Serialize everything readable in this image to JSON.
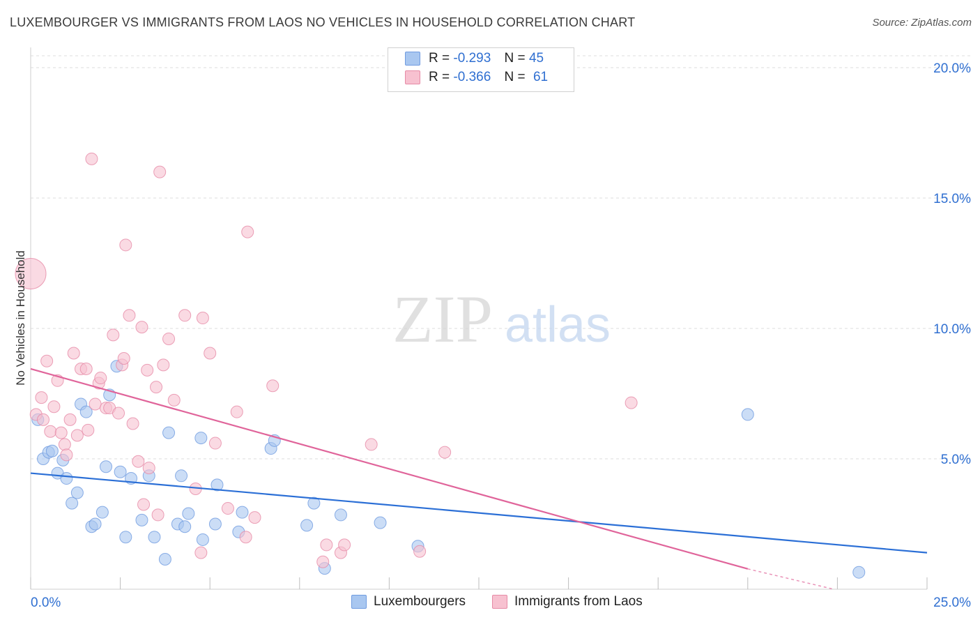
{
  "title": "LUXEMBOURGER VS IMMIGRANTS FROM LAOS NO VEHICLES IN HOUSEHOLD CORRELATION CHART",
  "source": "Source: ZipAtlas.com",
  "watermark": {
    "zip": "ZIP",
    "atlas": "atlas"
  },
  "legend": {
    "rows": [
      {
        "r_label": "R =",
        "r_value": "-0.293",
        "n_label": "N =",
        "n_value": "45",
        "color": "#a9c7f0",
        "border": "#6f9be0"
      },
      {
        "r_label": "R =",
        "r_value": "-0.366",
        "n_label": "N =",
        "n_value": "61",
        "color": "#f7c1d0",
        "border": "#e68aa6"
      }
    ]
  },
  "chart_data": {
    "type": "scatter",
    "title": "LUXEMBOURGER VS IMMIGRANTS FROM LAOS NO VEHICLES IN HOUSEHOLD CORRELATION CHART",
    "xlabel": "",
    "ylabel": "No Vehicles in Household",
    "xlim": [
      0,
      25
    ],
    "ylim": [
      0,
      20
    ],
    "x_tick_labels": [
      "0.0%",
      "25.0%"
    ],
    "y_ticks": [
      5,
      10,
      15,
      20
    ],
    "y_tick_labels": [
      "5.0%",
      "10.0%",
      "15.0%",
      "20.0%"
    ],
    "grid": true,
    "legend_position": "top-center",
    "series": [
      {
        "name": "Luxembourgers",
        "color": "#6f9be0",
        "fill": "#a9c7f0",
        "trend": {
          "x": [
            0,
            25
          ],
          "y": [
            4.45,
            1.4
          ]
        },
        "points": [
          [
            0.2,
            6.5
          ],
          [
            0.35,
            5.0
          ],
          [
            0.5,
            5.25
          ],
          [
            0.6,
            5.3
          ],
          [
            0.75,
            4.45
          ],
          [
            0.9,
            4.95
          ],
          [
            1.0,
            4.25
          ],
          [
            1.15,
            3.3
          ],
          [
            1.3,
            3.7
          ],
          [
            1.4,
            7.1
          ],
          [
            1.55,
            6.8
          ],
          [
            1.7,
            2.4
          ],
          [
            1.8,
            2.5
          ],
          [
            2.0,
            2.95
          ],
          [
            2.1,
            4.7
          ],
          [
            2.2,
            7.45
          ],
          [
            2.4,
            8.55
          ],
          [
            2.5,
            4.5
          ],
          [
            2.65,
            2.0
          ],
          [
            2.8,
            4.25
          ],
          [
            3.1,
            2.65
          ],
          [
            3.3,
            4.35
          ],
          [
            3.45,
            2.0
          ],
          [
            3.75,
            1.15
          ],
          [
            3.85,
            6.0
          ],
          [
            4.1,
            2.5
          ],
          [
            4.2,
            4.35
          ],
          [
            4.3,
            2.4
          ],
          [
            4.4,
            2.9
          ],
          [
            4.75,
            5.8
          ],
          [
            4.8,
            1.9
          ],
          [
            5.15,
            2.5
          ],
          [
            5.2,
            4.0
          ],
          [
            5.8,
            2.2
          ],
          [
            5.9,
            2.95
          ],
          [
            6.7,
            5.4
          ],
          [
            6.8,
            5.7
          ],
          [
            7.7,
            2.45
          ],
          [
            7.9,
            3.3
          ],
          [
            8.2,
            0.8
          ],
          [
            8.65,
            2.85
          ],
          [
            9.75,
            2.55
          ],
          [
            10.8,
            1.65
          ],
          [
            20.0,
            6.7
          ],
          [
            23.1,
            0.65
          ]
        ]
      },
      {
        "name": "Immigrants from Laos",
        "color": "#e68aa6",
        "fill": "#f7c1d0",
        "trend": {
          "x": [
            0,
            20.0
          ],
          "y": [
            8.45,
            0.78
          ]
        },
        "trend_dashed": {
          "x": [
            20.0,
            22.4
          ],
          "y": [
            0.78,
            0.0
          ]
        },
        "points": [
          [
            0.0,
            12.1
          ],
          [
            0.15,
            6.7
          ],
          [
            0.3,
            7.35
          ],
          [
            0.35,
            6.5
          ],
          [
            0.45,
            8.75
          ],
          [
            0.55,
            6.05
          ],
          [
            0.65,
            7.0
          ],
          [
            0.75,
            8.0
          ],
          [
            0.85,
            6.0
          ],
          [
            0.95,
            5.55
          ],
          [
            1.0,
            5.15
          ],
          [
            1.1,
            6.5
          ],
          [
            1.2,
            9.05
          ],
          [
            1.3,
            5.9
          ],
          [
            1.4,
            8.45
          ],
          [
            1.55,
            8.45
          ],
          [
            1.6,
            6.1
          ],
          [
            1.7,
            16.5
          ],
          [
            1.8,
            7.1
          ],
          [
            1.9,
            7.9
          ],
          [
            1.95,
            8.1
          ],
          [
            2.1,
            6.95
          ],
          [
            2.2,
            6.95
          ],
          [
            2.3,
            9.75
          ],
          [
            2.45,
            6.75
          ],
          [
            2.55,
            8.6
          ],
          [
            2.6,
            8.85
          ],
          [
            2.65,
            13.2
          ],
          [
            2.75,
            10.5
          ],
          [
            2.85,
            6.35
          ],
          [
            3.0,
            4.9
          ],
          [
            3.1,
            10.05
          ],
          [
            3.15,
            3.25
          ],
          [
            3.25,
            8.4
          ],
          [
            3.3,
            4.65
          ],
          [
            3.5,
            7.75
          ],
          [
            3.55,
            2.85
          ],
          [
            3.6,
            16.0
          ],
          [
            3.7,
            8.6
          ],
          [
            3.85,
            9.6
          ],
          [
            4.0,
            7.25
          ],
          [
            4.3,
            10.5
          ],
          [
            4.6,
            3.85
          ],
          [
            4.75,
            1.4
          ],
          [
            4.8,
            10.4
          ],
          [
            5.0,
            9.05
          ],
          [
            5.15,
            5.6
          ],
          [
            5.5,
            3.1
          ],
          [
            5.75,
            6.8
          ],
          [
            6.0,
            2.0
          ],
          [
            6.05,
            13.7
          ],
          [
            6.25,
            2.75
          ],
          [
            6.75,
            7.8
          ],
          [
            8.15,
            1.05
          ],
          [
            8.25,
            1.7
          ],
          [
            8.65,
            1.4
          ],
          [
            8.75,
            1.7
          ],
          [
            9.5,
            5.55
          ],
          [
            10.85,
            1.45
          ],
          [
            11.55,
            5.25
          ],
          [
            16.75,
            7.15
          ]
        ]
      }
    ]
  },
  "bottom_legend": [
    {
      "label": "Luxembourgers",
      "color": "#a9c7f0",
      "border": "#6f9be0"
    },
    {
      "label": "Immigrants from Laos",
      "color": "#f7c1d0",
      "border": "#e68aa6"
    }
  ]
}
